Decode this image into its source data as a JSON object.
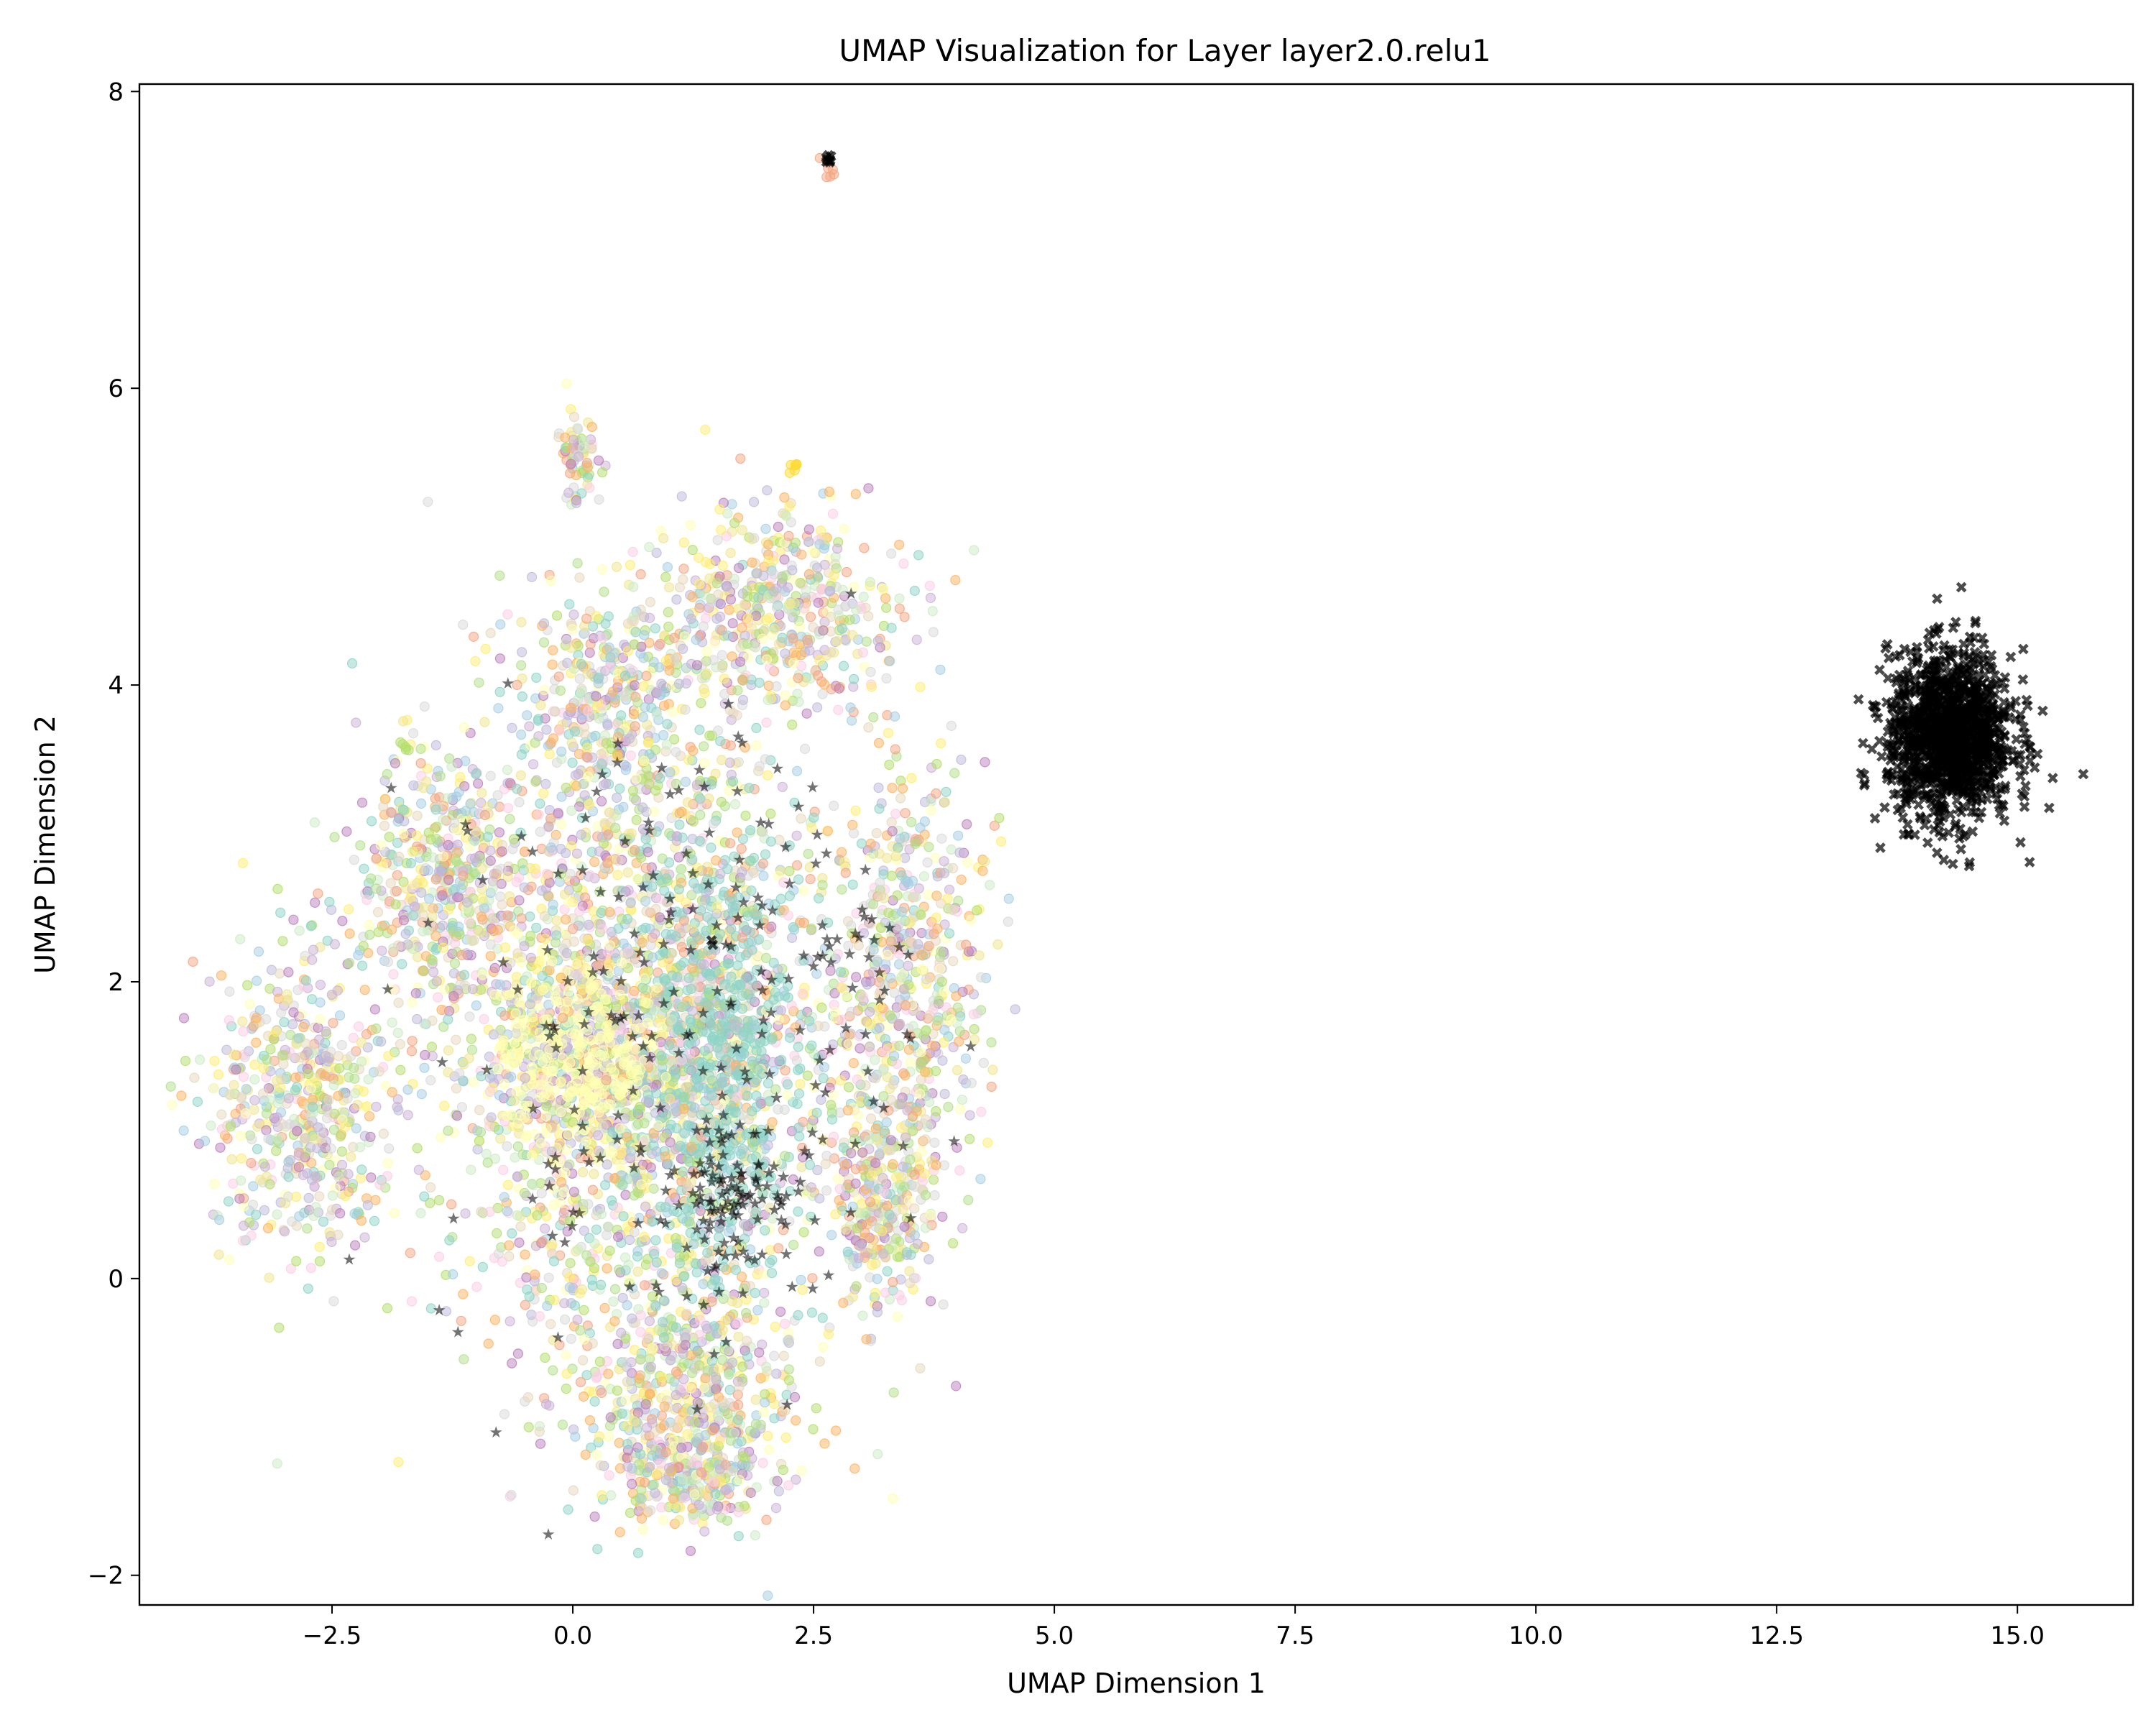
{
  "chart_data": {
    "type": "scatter",
    "title": "UMAP Visualization for Layer layer2.0.relu1",
    "xlabel": "UMAP Dimension 1",
    "ylabel": "UMAP Dimension 2",
    "xlim": [
      -4.5,
      16.2
    ],
    "ylim": [
      -2.2,
      8.05
    ],
    "xticks": [
      {
        "value": -2.5,
        "label": "−2.5"
      },
      {
        "value": 0.0,
        "label": "0.0"
      },
      {
        "value": 2.5,
        "label": "2.5"
      },
      {
        "value": 5.0,
        "label": "5.0"
      },
      {
        "value": 7.5,
        "label": "7.5"
      },
      {
        "value": 10.0,
        "label": "10.0"
      },
      {
        "value": 12.5,
        "label": "12.5"
      },
      {
        "value": 15.0,
        "label": "15.0"
      }
    ],
    "yticks": [
      {
        "value": -2,
        "label": "−2"
      },
      {
        "value": 0,
        "label": "0"
      },
      {
        "value": 2,
        "label": "2"
      },
      {
        "value": 4,
        "label": "4"
      },
      {
        "value": 6,
        "label": "6"
      },
      {
        "value": 8,
        "label": "8"
      }
    ],
    "grid": false,
    "legend": "none",
    "colors": {
      "palette": [
        "#8dd3c7",
        "#ffffb3",
        "#bebada",
        "#fdb462",
        "#b3de69",
        "#fccde5",
        "#d9d9d9",
        "#bc80bd",
        "#ccebc5",
        "#ffed6f",
        "#f0e68c",
        "#f4a582",
        "#cab2d6",
        "#b2df8a",
        "#a6cee3",
        "#e5d8bd"
      ],
      "outlier_cluster": "#ff0000",
      "star_markers": "#000000"
    },
    "series": [
      {
        "marker": "circle",
        "opacity": 0.5,
        "clusters": [
          {
            "center": [
              0.6,
              1.6
            ],
            "spread": [
              1.25,
              1.2
            ],
            "count": 2400,
            "palette": "mixed"
          },
          {
            "center": [
              -2.8,
              1.2
            ],
            "spread": [
              0.55,
              0.6
            ],
            "count": 550,
            "palette": "mixed"
          },
          {
            "center": [
              -1.4,
              2.7
            ],
            "spread": [
              0.5,
              0.5
            ],
            "count": 400,
            "palette": "mixed"
          },
          {
            "center": [
              2.2,
              4.5
            ],
            "spread": [
              0.7,
              0.4
            ],
            "count": 500,
            "palette": "mixed"
          },
          {
            "center": [
              0.4,
              3.9
            ],
            "spread": [
              0.6,
              0.5
            ],
            "count": 400,
            "palette": "mixed"
          },
          {
            "center": [
              3.5,
              2.0
            ],
            "spread": [
              0.45,
              0.8
            ],
            "count": 550,
            "palette": "mixed"
          },
          {
            "center": [
              3.2,
              0.5
            ],
            "spread": [
              0.35,
              0.45
            ],
            "count": 300,
            "palette": "mixed"
          },
          {
            "center": [
              1.2,
              -0.8
            ],
            "spread": [
              0.7,
              0.45
            ],
            "count": 550,
            "palette": "mixed"
          },
          {
            "center": [
              1.2,
              -1.35
            ],
            "spread": [
              0.4,
              0.2
            ],
            "count": 180,
            "palette": "mixed"
          },
          {
            "center": [
              1.5,
              1.5
            ],
            "spread": [
              0.5,
              0.9
            ],
            "count": 650,
            "palette": "teal"
          },
          {
            "center": [
              0.0,
              1.5
            ],
            "spread": [
              0.45,
              0.35
            ],
            "count": 400,
            "palette": "paleyellow"
          },
          {
            "center": [
              0.05,
              5.55
            ],
            "spread": [
              0.12,
              0.2
            ],
            "count": 70,
            "palette": "mixed"
          },
          {
            "center": [
              2.3,
              5.47
            ],
            "spread": [
              0.03,
              0.03
            ],
            "count": 6,
            "palette": "yellow"
          },
          {
            "center": [
              -1.75,
              3.58
            ],
            "spread": [
              0.03,
              0.03
            ],
            "count": 5,
            "palette": "green"
          },
          {
            "center": [
              2.68,
              7.48
            ],
            "spread": [
              0.04,
              0.04
            ],
            "count": 7,
            "palette": "salmon"
          }
        ]
      },
      {
        "marker": "star",
        "opacity": 0.55,
        "clusters": [
          {
            "center": [
              1.7,
              0.6
            ],
            "spread": [
              0.35,
              0.3
            ],
            "count": 90
          },
          {
            "center": [
              1.0,
              1.6
            ],
            "spread": [
              1.4,
              1.3
            ],
            "count": 200
          },
          {
            "center": [
              2.6,
              2.4
            ],
            "spread": [
              0.5,
              0.4
            ],
            "count": 30
          }
        ]
      },
      {
        "marker": "x",
        "opacity": 0.7,
        "clusters": [
          {
            "center": [
              14.3,
              3.65
            ],
            "spread": [
              0.38,
              0.33
            ],
            "count": 1300
          },
          {
            "center": [
              2.65,
              7.54
            ],
            "spread": [
              0.02,
              0.02
            ],
            "count": 8
          },
          {
            "center": [
              1.45,
              2.25
            ],
            "spread": [
              0.02,
              0.02
            ],
            "count": 2
          }
        ]
      }
    ]
  }
}
